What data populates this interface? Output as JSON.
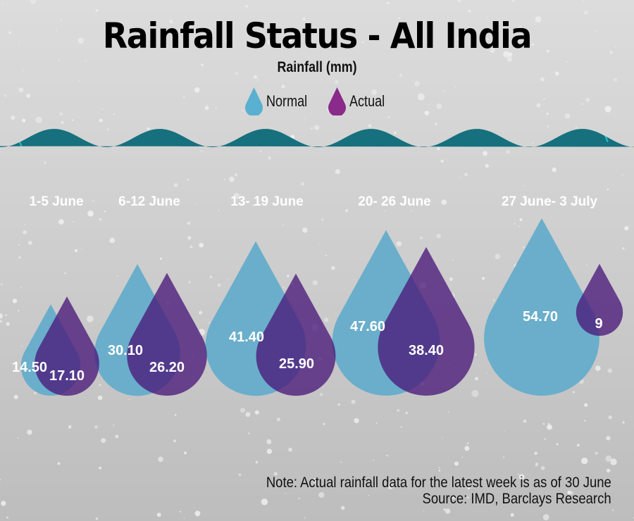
{
  "title": "Rainfall Status - All India",
  "subtitle": "Rainfall (mm)",
  "legend": [
    {
      "label": "Normal",
      "color": "#5ab0d0"
    },
    {
      "label": "Actual",
      "color": "#8a2a8a"
    }
  ],
  "note": "Note: Actual rainfall data for the latest week is as of 30 June",
  "source": "Source: IMD, Barclays Research",
  "colors": {
    "panel": "#16707e",
    "rain": "#2ec4cc",
    "normal_drop": "#6aaecb",
    "actual_drop": "#4a1a7a"
  },
  "chart_data": {
    "type": "bubble-drops",
    "title": "Rainfall Status - All India",
    "subtitle": "Rainfall (mm)",
    "categories": [
      "1-5 June",
      "6-12 June",
      "13- 19 June",
      "20- 26 June",
      "27 June- 3 July"
    ],
    "series": [
      {
        "name": "Normal",
        "values": [
          14.5,
          30.1,
          41.4,
          47.6,
          54.7
        ],
        "labels": [
          "14.50",
          "30.10",
          "41.40",
          "47.60",
          "54.70"
        ]
      },
      {
        "name": "Actual",
        "values": [
          17.1,
          26.2,
          25.9,
          38.4,
          9
        ],
        "labels": [
          "17.10",
          "26.20",
          "25.90",
          "38.40",
          "9"
        ]
      }
    ],
    "legend_position": "top-center",
    "unit": "mm",
    "grid": false
  }
}
